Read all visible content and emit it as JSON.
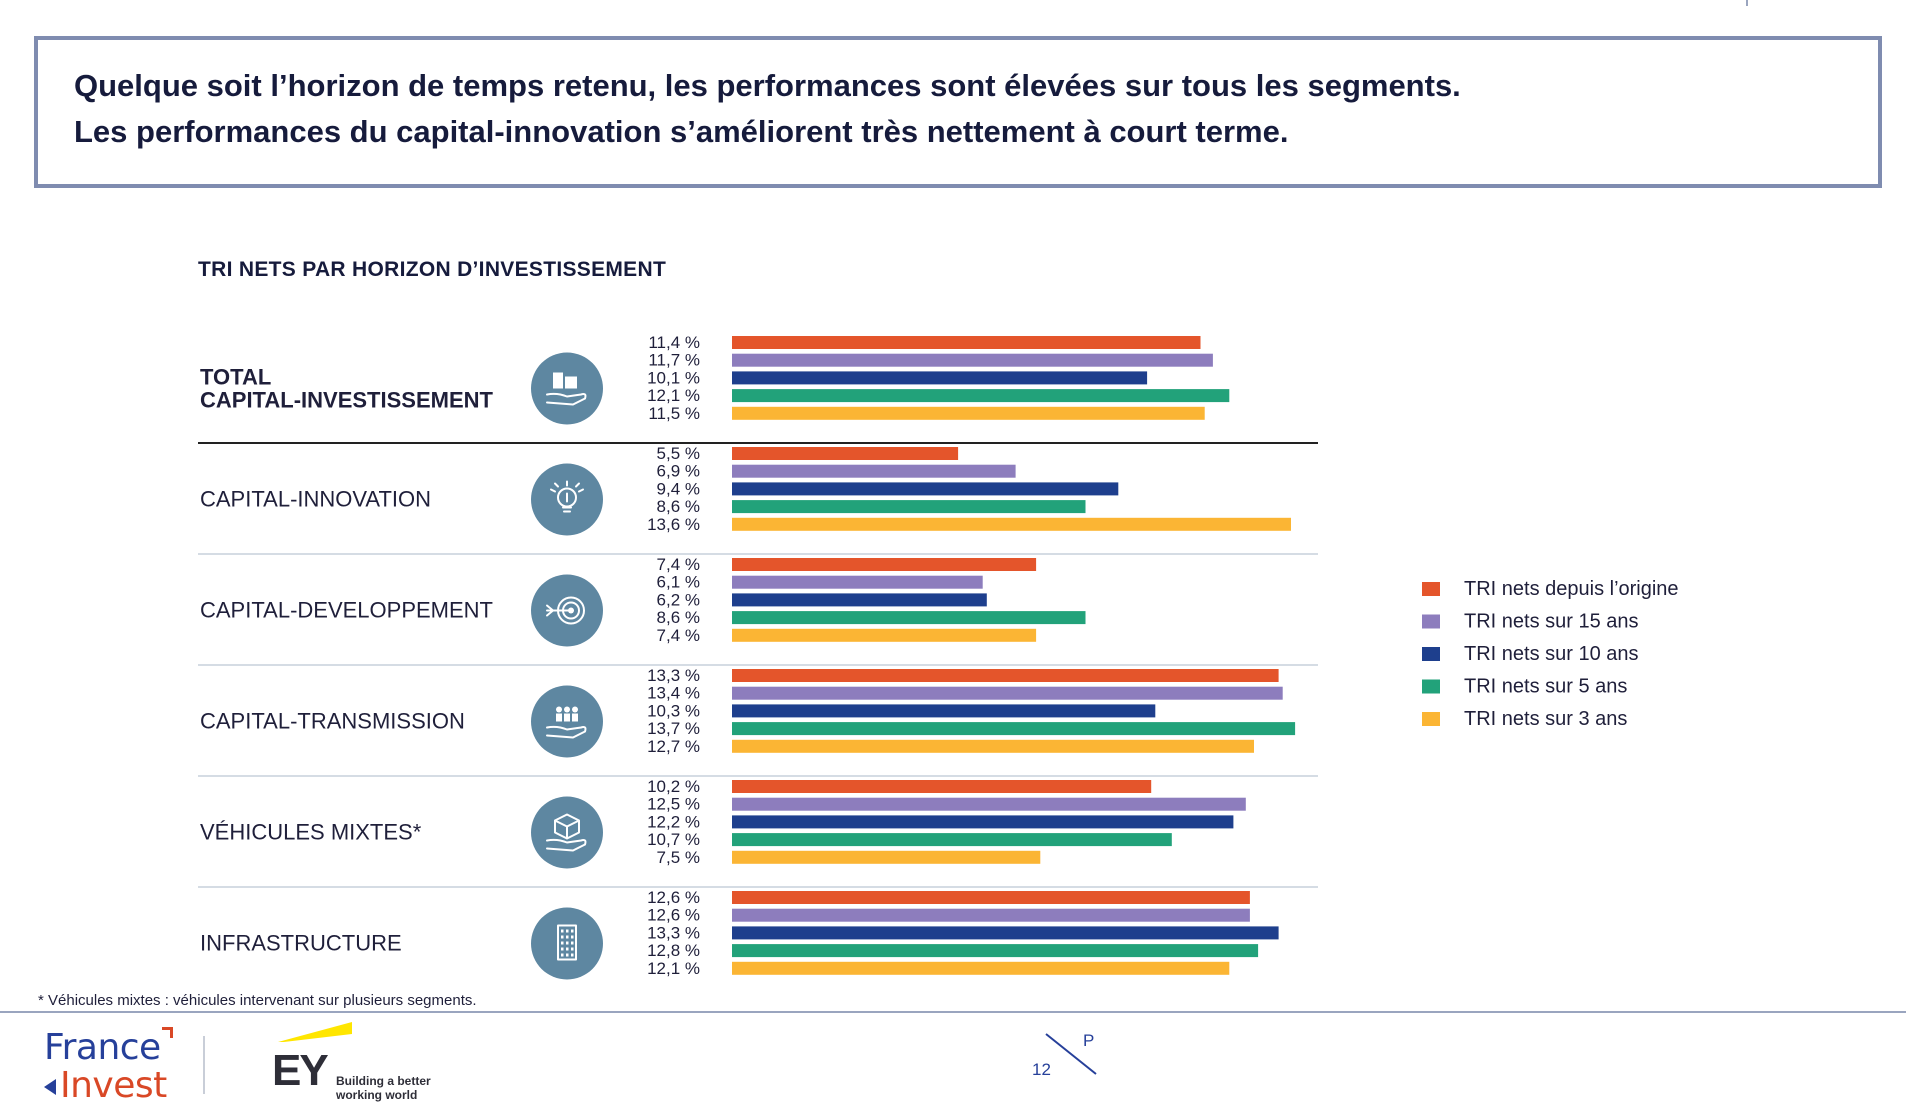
{
  "headline": {
    "line1": "Quelque soit l’horizon de temps retenu, les performances sont élevées sur tous les segments.",
    "line2": "Les performances du capital-innovation s’améliorent très nettement à court terme."
  },
  "footnote": "* Véhicules mixtes : véhicules intervenant sur plusieurs segments.",
  "footer": {
    "logo1_line1": "France",
    "logo1_line2": "Invest",
    "logo2_text": "EY",
    "logo2_tagline1": "Building a better",
    "logo2_tagline2": "working world",
    "page_number": "12",
    "page_letter": "P"
  },
  "chart_data": {
    "type": "bar",
    "orientation": "horizontal",
    "title": "TRI NETS PAR HORIZON D’INVESTISSEMENT",
    "xlim": [
      0,
      14
    ],
    "legend_position": "right",
    "series": [
      {
        "name": "TRI nets depuis l’origine",
        "color": "#e4552b"
      },
      {
        "name": "TRI nets sur 15 ans",
        "color": "#8d7dbd"
      },
      {
        "name": "TRI nets sur 10 ans",
        "color": "#1e3f8d"
      },
      {
        "name": "TRI nets sur 5 ans",
        "color": "#22a27a"
      },
      {
        "name": "TRI nets sur 3 ans",
        "color": "#fbb534"
      }
    ],
    "groups": [
      {
        "label_lines": [
          "TOTAL",
          "CAPITAL-INVESTISSEMENT"
        ],
        "bold": true,
        "icon": "hand-buildings-icon",
        "values": [
          11.4,
          11.7,
          10.1,
          12.1,
          11.5
        ],
        "labels": [
          "11,4 %",
          "11,7 %",
          "10,1 %",
          "12,1 %",
          "11,5 %"
        ]
      },
      {
        "label_lines": [
          "CAPITAL-INNOVATION"
        ],
        "bold": false,
        "icon": "lightbulb-icon",
        "values": [
          5.5,
          6.9,
          9.4,
          8.6,
          13.6
        ],
        "labels": [
          "5,5 %",
          "6,9 %",
          "9,4 %",
          "8,6 %",
          "13,6 %"
        ]
      },
      {
        "label_lines": [
          "CAPITAL-DEVELOPPEMENT"
        ],
        "bold": false,
        "icon": "target-arrow-icon",
        "values": [
          7.4,
          6.1,
          6.2,
          8.6,
          7.4
        ],
        "labels": [
          "7,4 %",
          "6,1 %",
          "6,2 %",
          "8,6 %",
          "7,4 %"
        ]
      },
      {
        "label_lines": [
          "CAPITAL-TRANSMISSION"
        ],
        "bold": false,
        "icon": "hand-people-icon",
        "values": [
          13.3,
          13.4,
          10.3,
          13.7,
          12.7
        ],
        "labels": [
          "13,3 %",
          "13,4 %",
          "10,3 %",
          "13,7 %",
          "12,7 %"
        ]
      },
      {
        "label_lines": [
          "VÉHICULES MIXTES*"
        ],
        "bold": false,
        "icon": "hand-box-icon",
        "values": [
          10.2,
          12.5,
          12.2,
          10.7,
          7.5
        ],
        "labels": [
          "10,2 %",
          "12,5 %",
          "12,2 %",
          "10,7 %",
          "7,5 %"
        ]
      },
      {
        "label_lines": [
          "INFRASTRUCTURE"
        ],
        "bold": false,
        "icon": "building-icon",
        "values": [
          12.6,
          12.6,
          13.3,
          12.8,
          12.1
        ],
        "labels": [
          "12,6 %",
          "12,6 %",
          "13,3 %",
          "12,8 %",
          "12,1 %"
        ]
      }
    ]
  }
}
